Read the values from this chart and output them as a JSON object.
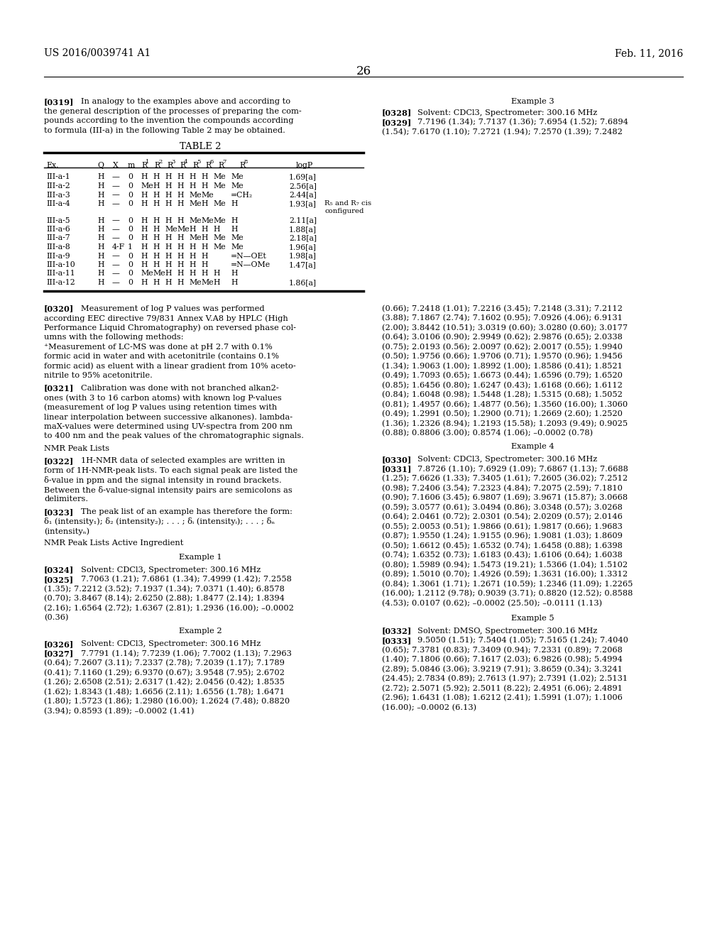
{
  "page_header_left": "US 2016/0039741 A1",
  "page_header_right": "Feb. 11, 2016",
  "page_number": "26",
  "background_color": "#ffffff"
}
